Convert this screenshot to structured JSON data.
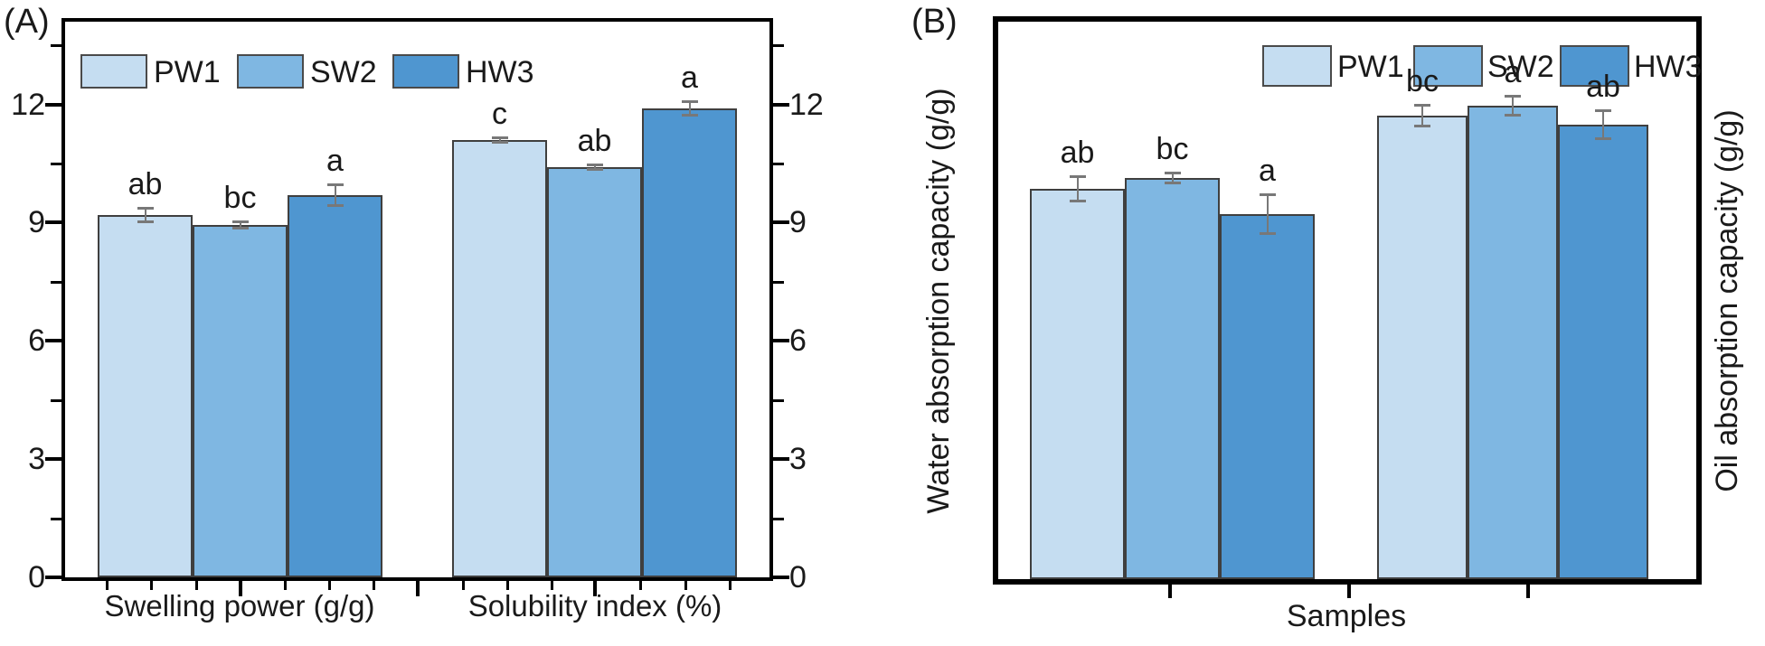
{
  "figure": {
    "panel_a_tag": "(A)",
    "panel_b_tag": "(B)"
  },
  "panel_a": {
    "x_categories": [
      "Swelling power (g/g)",
      "Solubility index (%)"
    ]
  },
  "panel_b": {
    "ylabel_left": "Water absorption capacity (g/g)",
    "ylabel_right": "Oil absorption capacity (g/g)",
    "xlabel": "Samples"
  },
  "legend": {
    "items": [
      {
        "label": "PW1"
      },
      {
        "label": "SW2"
      },
      {
        "label": "HW3"
      }
    ]
  },
  "colors": {
    "pw1": "#c5ddf1",
    "sw2": "#7fb7e2",
    "hw3": "#4f96d0",
    "bar_border": "#3f3f3f",
    "error_bar": "#787878",
    "frame": "#000000",
    "text": "#1a1a1a"
  },
  "chart_data": [
    {
      "type": "bar",
      "panel": "A",
      "title": "",
      "xlabel": "",
      "ylabel": "",
      "categories": [
        "Swelling power (g/g)",
        "Solubility index (%)"
      ],
      "series": [
        {
          "name": "PW1",
          "color": "#c5ddf1",
          "values": [
            9.2,
            11.1
          ],
          "errors": [
            0.18,
            0.08
          ],
          "sig_letters": [
            "ab",
            "c"
          ]
        },
        {
          "name": "SW2",
          "color": "#7fb7e2",
          "values": [
            8.95,
            10.4
          ],
          "errors": [
            0.1,
            0.08
          ],
          "sig_letters": [
            "bc",
            "ab"
          ]
        },
        {
          "name": "HW3",
          "color": "#4f96d0",
          "values": [
            9.7,
            11.9
          ],
          "errors": [
            0.27,
            0.18
          ],
          "sig_letters": [
            "a",
            "a"
          ]
        }
      ],
      "yticks": [
        0,
        3,
        6,
        9,
        12
      ],
      "yticks_minor": [
        1.5,
        4.5,
        7.5,
        10.5,
        13.5
      ],
      "ylim": [
        0,
        14.1
      ],
      "dual_axis_tick_labels": true,
      "grid": false,
      "legend_position": "top-left"
    },
    {
      "type": "bar",
      "panel": "B",
      "title": "",
      "xlabel": "Samples",
      "ylabel_left": "Water absorption capacity (g/g)",
      "ylabel_right": "Oil absorption capacity (g/g)",
      "categories": [
        "Water absorption capacity",
        "Oil absorption capacity"
      ],
      "axis_note": "no numeric tick labels shown; values are normalized fractions of plot height",
      "values_normalized": true,
      "series": [
        {
          "name": "PW1",
          "color": "#c5ddf1",
          "values": [
            0.7,
            0.831
          ],
          "errors": [
            0.022,
            0.02
          ],
          "sig_letters": [
            "ab",
            "bc"
          ]
        },
        {
          "name": "SW2",
          "color": "#7fb7e2",
          "values": [
            0.719,
            0.85
          ],
          "errors": [
            0.01,
            0.018
          ],
          "sig_letters": [
            "bc",
            "a"
          ]
        },
        {
          "name": "HW3",
          "color": "#4f96d0",
          "values": [
            0.654,
            0.815
          ],
          "errors": [
            0.035,
            0.026
          ],
          "sig_letters": [
            "a",
            "ab"
          ]
        }
      ],
      "yticks": [],
      "ylim": [
        0,
        1
      ],
      "grid": false,
      "legend_position": "top-right"
    }
  ]
}
